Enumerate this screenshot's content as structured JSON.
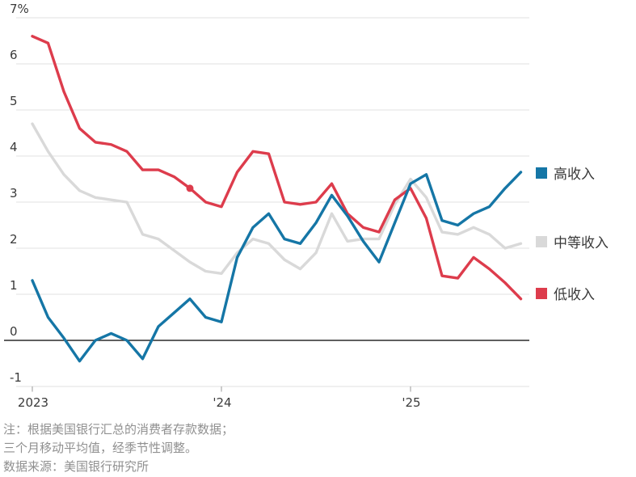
{
  "chart_data": {
    "type": "line",
    "unit": "%",
    "x": [
      "2023-01",
      "2023-02",
      "2023-03",
      "2023-04",
      "2023-05",
      "2023-06",
      "2023-07",
      "2023-08",
      "2023-09",
      "2023-10",
      "2023-11",
      "2023-12",
      "2024-01",
      "2024-02",
      "2024-03",
      "2024-04",
      "2024-05",
      "2024-06",
      "2024-07",
      "2024-08",
      "2024-09",
      "2024-10",
      "2024-11",
      "2024-12",
      "2025-01",
      "2025-02",
      "2025-03",
      "2025-04",
      "2025-05",
      "2025-06",
      "2025-07",
      "2025-08"
    ],
    "series": [
      {
        "name": "高收入",
        "color": "#1576a6",
        "values": [
          1.3,
          0.5,
          0.05,
          -0.45,
          0.0,
          0.15,
          0.0,
          -0.4,
          0.3,
          0.6,
          0.9,
          0.5,
          0.4,
          1.8,
          2.45,
          2.75,
          2.2,
          2.1,
          2.55,
          3.15,
          2.7,
          2.15,
          1.7,
          2.55,
          3.4,
          3.6,
          2.6,
          2.5,
          2.75,
          2.9,
          3.3,
          3.65
        ]
      },
      {
        "name": "中等收入",
        "color": "#d9d9d9",
        "values": [
          4.7,
          4.1,
          3.6,
          3.25,
          3.1,
          3.05,
          3.0,
          2.3,
          2.2,
          1.95,
          1.7,
          1.5,
          1.45,
          1.9,
          2.2,
          2.1,
          1.75,
          1.55,
          1.9,
          2.75,
          2.15,
          2.2,
          2.2,
          2.95,
          3.5,
          3.1,
          2.35,
          2.3,
          2.45,
          2.3,
          2.0,
          2.1
        ]
      },
      {
        "name": "低收入",
        "color": "#dd3c4c",
        "values": [
          6.6,
          6.45,
          5.4,
          4.6,
          4.3,
          4.25,
          4.1,
          3.7,
          3.7,
          3.55,
          3.3,
          3.0,
          2.9,
          3.65,
          4.1,
          4.05,
          3.0,
          2.95,
          3.0,
          3.4,
          2.75,
          2.45,
          2.35,
          3.05,
          3.3,
          2.65,
          1.4,
          1.35,
          1.8,
          1.55,
          1.25,
          0.9
        ]
      }
    ],
    "y_ticks": [
      {
        "value": 7,
        "label": "7%"
      },
      {
        "value": 6,
        "label": "6"
      },
      {
        "value": 5,
        "label": "5"
      },
      {
        "value": 4,
        "label": "4"
      },
      {
        "value": 3,
        "label": "3"
      },
      {
        "value": 2,
        "label": "2"
      },
      {
        "value": 1,
        "label": "1"
      },
      {
        "value": 0,
        "label": "0"
      },
      {
        "value": -1,
        "label": "-1"
      }
    ],
    "x_ticks": [
      {
        "label": "2023",
        "index": 0
      },
      {
        "label": "'24",
        "index": 12
      },
      {
        "label": "'25",
        "index": 24
      }
    ],
    "ylim": [
      -1.4,
      7
    ],
    "grid": "horizontal",
    "legend_position": "right",
    "marker": {
      "series": "低收入",
      "index": 10,
      "x": "2023-11",
      "value": 3.3
    }
  },
  "legend": {
    "items": [
      {
        "label": "高收入",
        "color": "#1576a6"
      },
      {
        "label": "中等收入",
        "color": "#d9d9d9"
      },
      {
        "label": "低收入",
        "color": "#dd3c4c"
      }
    ]
  },
  "notes": {
    "line1": "注：根据美国银行汇总的消费者存款数据；",
    "line2": "三个月移动平均值，经季节性调整。",
    "source": "数据来源：美国银行研究所"
  },
  "colors": {
    "grid": "#e2e2e2",
    "zero_line": "#2b2b2b",
    "tick": "#9a9a9a",
    "axis_text": "#3a3a3a",
    "note_text": "#909090",
    "background": "#ffffff"
  }
}
